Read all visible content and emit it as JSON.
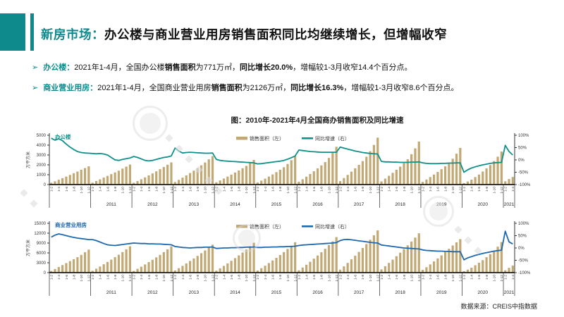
{
  "header": {
    "prefix": "新房市场：",
    "rest": "办公楼与商业营业用房销售面积同比均继续增长，但增幅收窄",
    "accent_color": "#0e8a8d"
  },
  "bullets": [
    {
      "label": "办公楼：",
      "segments": [
        {
          "t": "2021年1-4月，全国办公楼",
          "b": false
        },
        {
          "t": "销售面积",
          "b": true
        },
        {
          "t": "为771万㎡，",
          "b": false
        },
        {
          "t": "同比增长20.0%",
          "b": true
        },
        {
          "t": "，增幅较1-3月收窄14.4个百分点。",
          "b": false
        }
      ]
    },
    {
      "label": "商业营业用房：",
      "segments": [
        {
          "t": "2021年1-4月，全国商业营业用房",
          "b": false
        },
        {
          "t": "销售面积",
          "b": true
        },
        {
          "t": "为2126万㎡，",
          "b": false
        },
        {
          "t": "同比增长16.3%",
          "b": true
        },
        {
          "t": "，增幅较1-3月收窄8.6个百分点。",
          "b": false
        }
      ]
    }
  ],
  "figure_title": "图：2010年-2021年4月全国商办销售面积及同比增速",
  "source": "数据来源：CREIS中指数据",
  "chart_data": [
    {
      "type": "bar",
      "name": "办公楼",
      "label_color": "#0f918a",
      "bar_color": "#c2a873",
      "line_color": "#0f918a",
      "ylabel_left": "万平方米",
      "ylim_left": [
        0,
        5000
      ],
      "left_ticks": [
        0,
        1000,
        2000,
        3000,
        4000,
        5000
      ],
      "ylim_right": [
        -100,
        100
      ],
      "right_ticks": [
        100,
        50,
        0,
        -50,
        -100
      ],
      "legend": {
        "bar": "销售面积（左）",
        "line": "同比增速（右）"
      },
      "month_tick_labels": [
        "1-2",
        "1-4",
        "1-6",
        "1-8",
        "1-10",
        "1-12"
      ],
      "years": [
        "2010",
        "2011",
        "2012",
        "2013",
        "2014",
        "2015",
        "2016",
        "2017",
        "2018",
        "2019",
        "2020",
        "2021"
      ],
      "year_labels": [
        "",
        "2011",
        "2012",
        "2013",
        "2014",
        "2015",
        "2016",
        "2017",
        "2018",
        "2019",
        "2020",
        "2021"
      ],
      "series": [
        {
          "name": "销售面积（左）",
          "type": "bar",
          "unit": "万平方米",
          "values": [
            [
              180,
              330,
              490,
              650,
              810,
              980,
              1150,
              1320,
              1500,
              1670,
              1850
            ],
            [
              190,
              360,
              530,
              710,
              880,
              1060,
              1230,
              1410,
              1620,
              1820,
              2030
            ],
            [
              180,
              350,
              540,
              730,
              930,
              1130,
              1340,
              1560,
              1780,
              2010,
              2250
            ],
            [
              260,
              480,
              700,
              930,
              1170,
              1410,
              1660,
              1950,
              2240,
              2560,
              2880
            ],
            [
              230,
              420,
              610,
              810,
              1010,
              1220,
              1430,
              1650,
              1900,
              2190,
              2500
            ],
            [
              210,
              400,
              600,
              810,
              1030,
              1260,
              1500,
              1760,
              2090,
              2470,
              2910
            ],
            [
              290,
              540,
              800,
              1070,
              1350,
              1640,
              1940,
              2280,
              2700,
              3230,
              3830
            ],
            [
              350,
              660,
              980,
              1310,
              1650,
              2000,
              2380,
              2820,
              3380,
              4020,
              4760
            ],
            [
              320,
              600,
              890,
              1190,
              1500,
              1820,
              2170,
              2570,
              3080,
              3670,
              4360
            ],
            [
              270,
              510,
              760,
              1020,
              1280,
              1560,
              1850,
              2190,
              2620,
              3130,
              3720
            ],
            [
              150,
              310,
              500,
              760,
              1020,
              1320,
              1640,
              1980,
              2380,
              2830,
              3350
            ],
            [
              330,
              560,
              771
            ]
          ]
        },
        {
          "name": "同比增速（右）",
          "type": "line",
          "unit": "%",
          "values": [
            [
              88,
              80,
              86,
              78,
              64,
              52,
              42,
              34,
              30,
              28,
              27
            ],
            [
              26,
              25,
              26,
              24,
              20,
              10,
              0,
              -2,
              2,
              5,
              8
            ],
            [
              14,
              10,
              4,
              -2,
              -4,
              -2,
              2,
              6,
              10,
              12,
              16
            ],
            [
              48,
              36,
              28,
              30,
              31,
              30,
              29,
              28,
              27,
              27,
              28
            ],
            [
              2,
              -2,
              -4,
              -5,
              -6,
              -7,
              -8,
              -9,
              -10,
              -11,
              -12
            ],
            [
              -16,
              -15,
              -13,
              -11,
              -9,
              -7,
              -5,
              -2,
              3,
              9,
              16
            ],
            [
              40,
              38,
              36,
              34,
              33,
              32,
              31,
              31,
              31,
              31,
              31
            ],
            [
              52,
              48,
              44,
              40,
              36,
              33,
              30,
              28,
              26,
              25,
              24
            ],
            [
              -6,
              -8,
              -8,
              -9,
              -9,
              -10,
              -10,
              -10,
              -9,
              -9,
              -8
            ],
            [
              -12,
              -14,
              -15,
              -15,
              -15,
              -14,
              -14,
              -13,
              -13,
              -12,
              -12
            ],
            [
              -50,
              -40,
              -33,
              -28,
              -24,
              -20,
              -17,
              -14,
              -12,
              -11,
              -10
            ],
            [
              59,
              34.4,
              20.0
            ]
          ]
        }
      ]
    },
    {
      "type": "bar",
      "name": "商业营业用房",
      "label_color": "#1e68ae",
      "bar_color": "#c2a873",
      "line_color": "#1e68ae",
      "ylabel_left": "万平方米",
      "ylim_left": [
        0,
        15000
      ],
      "left_ticks": [
        0,
        3000,
        6000,
        9000,
        12000,
        15000
      ],
      "ylim_right": [
        -100,
        100
      ],
      "right_ticks": [
        100,
        50,
        0,
        -50,
        -100
      ],
      "legend": {
        "bar": "销售面积（左）",
        "line": "同比增速（右）"
      },
      "month_tick_labels": [
        "1-2",
        "1-4",
        "1-6",
        "1-8",
        "1-10",
        "1-12"
      ],
      "years": [
        "2010",
        "2011",
        "2012",
        "2013",
        "2014",
        "2015",
        "2016",
        "2017",
        "2018",
        "2019",
        "2020",
        "2021"
      ],
      "year_labels": [
        "",
        "2011",
        "2012",
        "2013",
        "2014",
        "2015",
        "2016",
        "2017",
        "2018",
        "2019",
        "2020",
        "2021"
      ],
      "series": [
        {
          "name": "销售面积（左）",
          "type": "bar",
          "unit": "万平方米",
          "values": [
            [
              500,
              1100,
              1700,
              2300,
              2900,
              3500,
              4100,
              4700,
              5400,
              6200,
              7000
            ],
            [
              550,
              1200,
              1850,
              2550,
              3250,
              3950,
              4700,
              5450,
              6250,
              7100,
              8000
            ],
            [
              500,
              1150,
              1800,
              2500,
              3200,
              3900,
              4650,
              5400,
              6250,
              7100,
              8000
            ],
            [
              650,
              1350,
              2050,
              2800,
              3550,
              4300,
              5100,
              5900,
              6750,
              7600,
              8500
            ],
            [
              600,
              1300,
              2050,
              2800,
              3600,
              4400,
              5250,
              6100,
              7050,
              8050,
              9100
            ],
            [
              620,
              1350,
              2100,
              2900,
              3700,
              4500,
              5350,
              6250,
              7200,
              8200,
              9250
            ],
            [
              700,
              1550,
              2400,
              3300,
              4250,
              5200,
              6200,
              7250,
              8350,
              9500,
              10800
            ],
            [
              900,
              1900,
              2950,
              4050,
              5150,
              6300,
              7500,
              8700,
              10000,
              11350,
              12840
            ],
            [
              1000,
              1950,
              2950,
              3950,
              5000,
              6050,
              7150,
              8300,
              9450,
              10650,
              11970
            ],
            [
              850,
              1650,
              2500,
              3400,
              4300,
              5250,
              6250,
              7250,
              8250,
              9200,
              10200
            ],
            [
              420,
              900,
              1500,
              2250,
              3000,
              3800,
              4700,
              5600,
              6700,
              7900,
              9290
            ],
            [
              700,
              1450,
              2126
            ]
          ]
        },
        {
          "name": "同比增速（右）",
          "type": "line",
          "unit": "%",
          "values": [
            [
              44,
              52,
              57,
              54,
              50,
              46,
              43,
              40,
              38,
              36,
              34
            ],
            [
              34,
              30,
              24,
              18,
              13,
              11,
              10,
              12,
              14,
              16,
              18
            ],
            [
              20,
              19,
              18,
              18,
              17,
              17,
              16,
              16,
              15,
              14,
              13
            ],
            [
              6,
              4,
              2,
              1,
              0,
              1,
              2,
              2,
              3,
              3,
              4
            ],
            [
              -2,
              -1,
              0,
              0,
              1,
              1,
              2,
              2,
              3,
              3,
              4
            ],
            [
              2,
              2,
              3,
              3,
              4,
              4,
              5,
              5,
              6,
              6,
              7
            ],
            [
              10,
              12,
              13,
              14,
              15,
              16,
              17,
              18,
              19,
              20,
              22
            ],
            [
              30,
              34,
              35,
              33,
              31,
              29,
              27,
              25,
              23,
              21,
              20
            ],
            [
              12,
              10,
              8,
              6,
              4,
              2,
              0,
              -1,
              -2,
              -3,
              -4
            ],
            [
              -8,
              -10,
              -11,
              -12,
              -13,
              -13,
              -14,
              -14,
              -15,
              -15,
              -15
            ],
            [
              -48,
              -40,
              -35,
              -30,
              -26,
              -22,
              -19,
              -16,
              -13,
              -11,
              -9
            ],
            [
              68,
              24.9,
              16.3
            ]
          ]
        }
      ]
    }
  ]
}
